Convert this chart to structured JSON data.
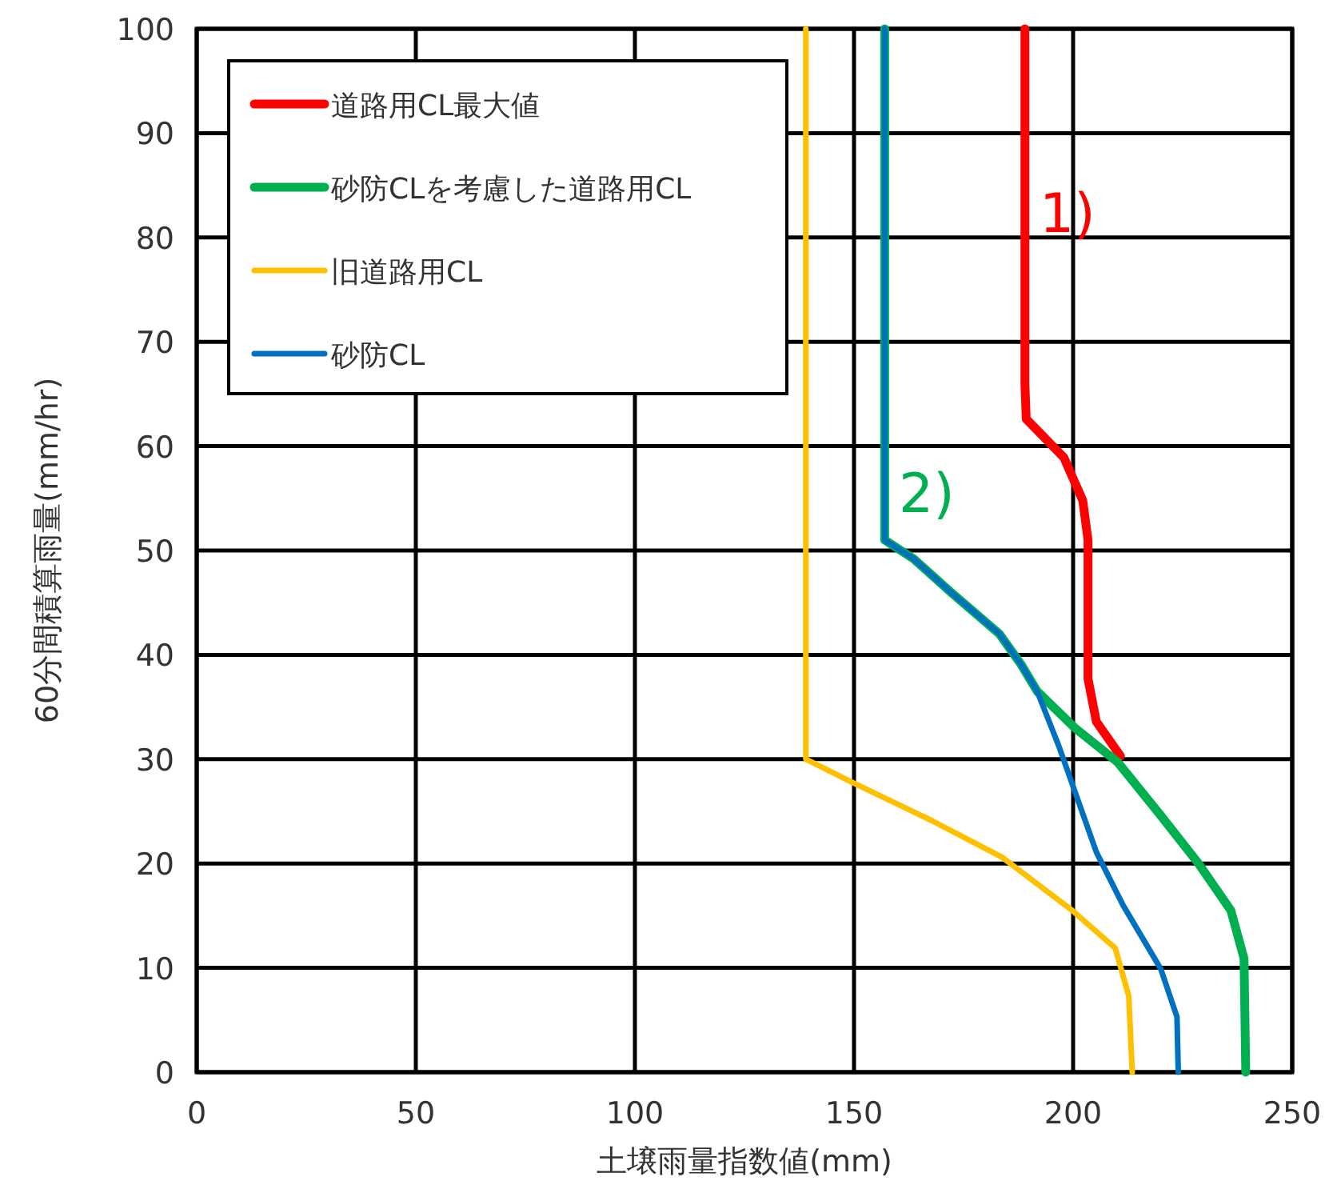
{
  "chart_data": {
    "type": "line",
    "xlabel": "土壌雨量指数値(mm)",
    "ylabel": "60分間積算雨量(mm/hr)",
    "xlim": [
      0,
      250
    ],
    "ylim": [
      0,
      100
    ],
    "xticks": [
      0,
      50,
      100,
      150,
      200,
      250
    ],
    "yticks": [
      0,
      10,
      20,
      30,
      40,
      50,
      60,
      70,
      80,
      90,
      100
    ],
    "grid": true,
    "legend": "top left",
    "marker": "none",
    "line_style": "solid",
    "series": [
      {
        "name": "道路用CL最大値",
        "color": "#ff0000",
        "x": [
          189,
          189,
          189.3,
          197.9,
          202.2,
          203.4,
          203.4,
          205.3,
          210.8
        ],
        "values": [
          100,
          66,
          62.6,
          58.9,
          54.8,
          51,
          37.7,
          33.6,
          30.3
        ]
      },
      {
        "name": "砂防CLを考慮した道路用CL",
        "color": "#00b050",
        "x": [
          157,
          157,
          163.6,
          172.1,
          183.2,
          188.1,
          191.8,
          200.4,
          210.2,
          220,
          228.6,
          236,
          239,
          239.4
        ],
        "values": [
          100,
          51,
          49.2,
          46,
          42,
          39.1,
          36.5,
          33,
          29.7,
          24.6,
          20,
          15.5,
          10.9,
          0
        ]
      },
      {
        "name": "旧道路用CL",
        "color": "#ffc000",
        "x": [
          139,
          139,
          150,
          167.8,
          183.8,
          199.8,
          209.6,
          212.7,
          213.5
        ],
        "values": [
          100,
          30,
          27.7,
          24.1,
          20.6,
          15.5,
          11.9,
          7.3,
          0
        ]
      },
      {
        "name": "砂防CL",
        "color": "#0070c0",
        "x": [
          157,
          157,
          163.6,
          172.1,
          183.2,
          188.1,
          191.8,
          196.7,
          201,
          205.3,
          211.4,
          220,
          223.7,
          224
        ],
        "values": [
          100,
          51,
          49.2,
          46,
          42,
          39.1,
          36.5,
          31.3,
          26.2,
          21.1,
          16,
          9.9,
          5.3,
          0
        ]
      }
    ],
    "annotations": [
      "1)",
      "2)"
    ]
  }
}
